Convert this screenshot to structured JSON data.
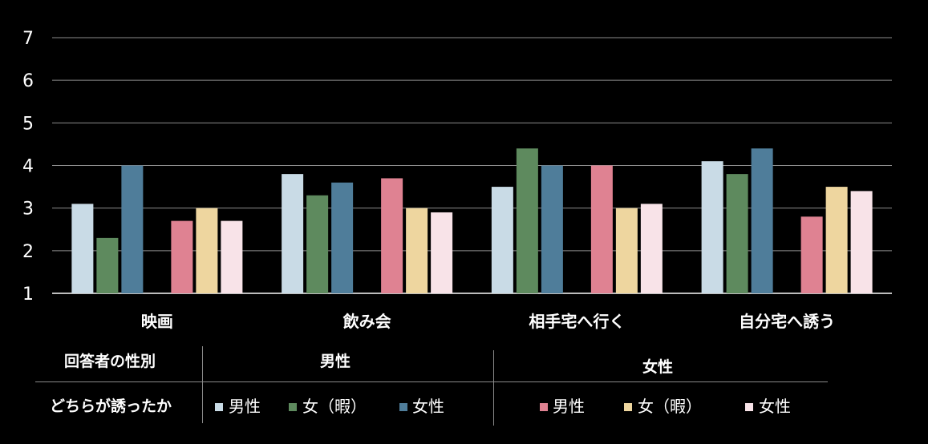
{
  "chart_data": {
    "type": "bar",
    "categories": [
      "映画",
      "飲み会",
      "相手宅へ行く",
      "自分宅へ誘う"
    ],
    "ylim": [
      1,
      7
    ],
    "yticks": [
      1,
      2,
      3,
      4,
      5,
      6,
      7
    ],
    "grid": true,
    "series": [
      {
        "group": "男性",
        "name": "男性",
        "color": "#c9dbe6",
        "values": [
          3.1,
          3.8,
          3.5,
          4.1
        ]
      },
      {
        "group": "男性",
        "name": "女（暇）",
        "color": "#5e8a5e",
        "values": [
          2.3,
          3.3,
          4.4,
          3.8
        ]
      },
      {
        "group": "男性",
        "name": "女性",
        "color": "#4f7d9a",
        "values": [
          4.0,
          3.6,
          4.0,
          4.4
        ]
      },
      {
        "group": "女性",
        "name": "男性",
        "color": "#df8292",
        "values": [
          2.7,
          3.7,
          4.0,
          2.8
        ]
      },
      {
        "group": "女性",
        "name": "女（暇）",
        "color": "#eed69f",
        "values": [
          3.0,
          3.0,
          3.0,
          3.5
        ]
      },
      {
        "group": "女性",
        "name": "女性",
        "color": "#f8e3e8",
        "values": [
          2.7,
          2.9,
          3.1,
          3.4
        ]
      }
    ]
  },
  "legend": {
    "row1_label": "回答者の性別",
    "row2_label": "どちらが誘ったか",
    "group_male": "男性",
    "group_female": "女性"
  }
}
